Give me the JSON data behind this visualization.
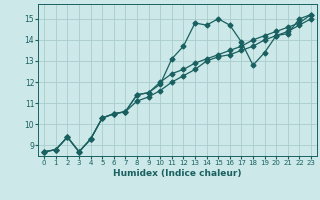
{
  "title": "",
  "xlabel": "Humidex (Indice chaleur)",
  "ylabel": "",
  "background_color": "#cce8e8",
  "grid_color": "#aacccc",
  "line_color": "#1a6060",
  "xlim": [
    -0.5,
    23.5
  ],
  "ylim": [
    8.5,
    15.7
  ],
  "xticks": [
    0,
    1,
    2,
    3,
    4,
    5,
    6,
    7,
    8,
    9,
    10,
    11,
    12,
    13,
    14,
    15,
    16,
    17,
    18,
    19,
    20,
    21,
    22,
    23
  ],
  "yticks": [
    9,
    10,
    11,
    12,
    13,
    14,
    15
  ],
  "line1_x": [
    0,
    1,
    2,
    3,
    4,
    5,
    6,
    7,
    8,
    9,
    10,
    11,
    12,
    13,
    14,
    15,
    16,
    17,
    18,
    19,
    20,
    21,
    22,
    23
  ],
  "line1_y": [
    8.7,
    8.8,
    9.4,
    8.7,
    9.3,
    10.3,
    10.5,
    10.6,
    11.4,
    11.5,
    11.9,
    13.1,
    13.7,
    14.8,
    14.7,
    15.0,
    14.7,
    13.9,
    12.8,
    13.4,
    14.2,
    14.3,
    15.0,
    15.2
  ],
  "line2_x": [
    0,
    1,
    2,
    3,
    4,
    5,
    6,
    7,
    8,
    9,
    10,
    11,
    12,
    13,
    14,
    15,
    16,
    17,
    18,
    19,
    20,
    21,
    22,
    23
  ],
  "line2_y": [
    8.7,
    8.8,
    9.4,
    8.7,
    9.3,
    10.3,
    10.5,
    10.6,
    11.4,
    11.5,
    12.0,
    12.4,
    12.6,
    12.9,
    13.1,
    13.3,
    13.5,
    13.7,
    14.0,
    14.2,
    14.4,
    14.6,
    14.8,
    15.2
  ],
  "line3_x": [
    0,
    1,
    2,
    3,
    4,
    5,
    6,
    7,
    8,
    9,
    10,
    11,
    12,
    13,
    14,
    15,
    16,
    17,
    18,
    19,
    20,
    21,
    22,
    23
  ],
  "line3_y": [
    8.7,
    8.8,
    9.4,
    8.7,
    9.3,
    10.3,
    10.5,
    10.6,
    11.1,
    11.3,
    11.6,
    12.0,
    12.3,
    12.6,
    13.0,
    13.2,
    13.3,
    13.5,
    13.7,
    14.0,
    14.2,
    14.4,
    14.7,
    15.0
  ],
  "marker_size": 2.5,
  "line_width": 0.9,
  "xlabel_fontsize": 6.5,
  "tick_fontsize": 5.0
}
